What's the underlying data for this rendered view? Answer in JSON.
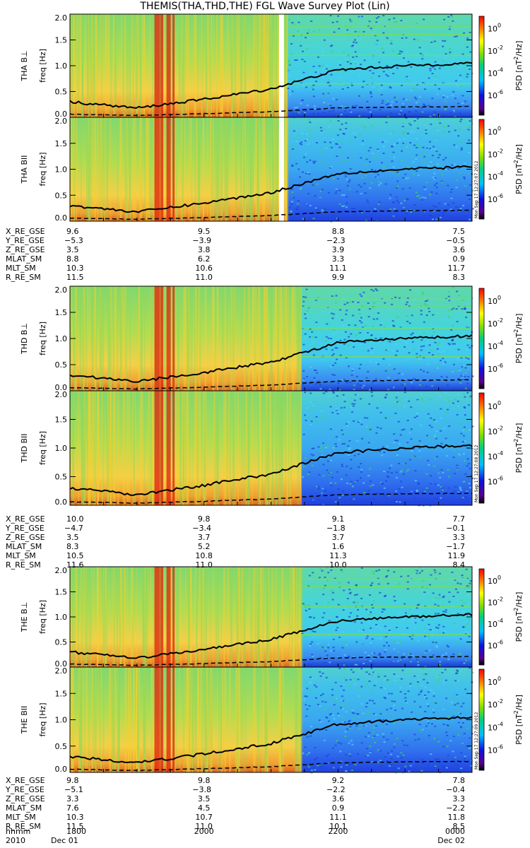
{
  "title": "THEMIS(THA,THD,THE) FGL Wave Survey Plot (Lin)",
  "chart_data": {
    "type": "heatmap",
    "title": "THEMIS(THA,THD,THE) FGL Wave Survey Plot (Lin)",
    "x_ticks_hhmm": [
      "1800",
      "2000",
      "2200",
      "0000"
    ],
    "date_row": {
      "left_year": "2010",
      "left_date": "Dec 01",
      "right_date": "Dec 02",
      "row_label": "hhmm"
    },
    "ylim": [
      0.0,
      2.0
    ],
    "y_ticks": [
      "0.0",
      "0.5",
      "1.0",
      "1.5",
      "2.0"
    ],
    "ylabel": "freq [Hz]",
    "colorbar": {
      "label": "PSD [nT²/Hz]",
      "label_main": "PSD [nT",
      "label_sup": "2",
      "label_end": "/Hz]",
      "scale": "log",
      "range": [
        1e-06,
        10
      ],
      "tick_exponents": [
        "0",
        "-2",
        "-4",
        "-6"
      ],
      "tick_base": "10"
    },
    "panels": [
      {
        "name": "THA B⊥",
        "probe": "THA",
        "comp": "B⊥",
        "stamp": "Mon Sep 17 12:27:07 2012"
      },
      {
        "name": "THA B∥",
        "probe": "THA",
        "comp": "BII",
        "stamp": "Mon Sep 17 12:27:07 2012"
      },
      {
        "name": "THD B⊥",
        "probe": "THD",
        "comp": "B⊥",
        "stamp": "Mon Sep 17 12:27:08 2012"
      },
      {
        "name": "THD B∥",
        "probe": "THD",
        "comp": "BII",
        "stamp": "Mon Sep 17 12:27:08 2012"
      },
      {
        "name": "THE B⊥",
        "probe": "THE",
        "comp": "B⊥",
        "stamp": "Mon Sep 17 12:27:09 2012"
      },
      {
        "name": "THE B∥",
        "probe": "THE",
        "comp": "BII",
        "stamp": "Mon Sep 17 12:27:09 2012"
      }
    ],
    "gyro_line_solid_approx_hz": {
      "hhmm": [
        "1800",
        "1900",
        "2000",
        "2100",
        "2200",
        "2300",
        "0000"
      ],
      "values": [
        0.3,
        0.18,
        0.35,
        0.55,
        0.92,
        1.0,
        1.05
      ]
    },
    "ephemeris": [
      {
        "probe": "THA",
        "rows": [
          {
            "label": "X_RE_GSE",
            "values": [
              "9.6",
              "9.5",
              "8.8",
              "7.5"
            ]
          },
          {
            "label": "Y_RE_GSE",
            "values": [
              "-5.3",
              "-3.9",
              "-2.3",
              "-0.5"
            ]
          },
          {
            "label": "Z_RE_GSE",
            "values": [
              "3.5",
              "3.8",
              "3.9",
              "3.6"
            ]
          },
          {
            "label": "MLAT_SM",
            "values": [
              "8.8",
              "6.2",
              "3.3",
              "0.9"
            ]
          },
          {
            "label": "MLT_SM",
            "values": [
              "10.3",
              "10.6",
              "11.1",
              "11.7"
            ]
          },
          {
            "label": "R_RE_SM",
            "values": [
              "11.5",
              "11.0",
              "9.9",
              "8.3"
            ]
          }
        ]
      },
      {
        "probe": "THD",
        "rows": [
          {
            "label": "X_RE_GSE",
            "values": [
              "10.0",
              "9.8",
              "9.1",
              "7.7"
            ]
          },
          {
            "label": "Y_RE_GSE",
            "values": [
              "-4.7",
              "-3.4",
              "-1.8",
              "-0.1"
            ]
          },
          {
            "label": "Z_RE_GSE",
            "values": [
              "3.5",
              "3.7",
              "3.7",
              "3.3"
            ]
          },
          {
            "label": "MLAT_SM",
            "values": [
              "8.3",
              "5.2",
              "1.6",
              "-1.7"
            ]
          },
          {
            "label": "MLT_SM",
            "values": [
              "10.5",
              "10.8",
              "11.3",
              "11.9"
            ]
          },
          {
            "label": "R_RE_SM",
            "values": [
              "11.6",
              "11.0",
              "10.0",
              "8.4"
            ]
          }
        ]
      },
      {
        "probe": "THE",
        "rows": [
          {
            "label": "X_RE_GSE",
            "values": [
              "9.8",
              "9.8",
              "9.2",
              "7.8"
            ]
          },
          {
            "label": "Y_RE_GSE",
            "values": [
              "-5.1",
              "-3.8",
              "-2.2",
              "-0.4"
            ]
          },
          {
            "label": "Z_RE_GSE",
            "values": [
              "3.3",
              "3.5",
              "3.6",
              "3.3"
            ]
          },
          {
            "label": "MLAT_SM",
            "values": [
              "7.6",
              "4.5",
              "0.9",
              "-2.2"
            ]
          },
          {
            "label": "MLT_SM",
            "values": [
              "10.3",
              "10.7",
              "11.1",
              "11.8"
            ]
          },
          {
            "label": "R_RE_SM",
            "values": [
              "11.5",
              "11.0",
              "10.1",
              "8.5"
            ]
          }
        ]
      }
    ]
  }
}
